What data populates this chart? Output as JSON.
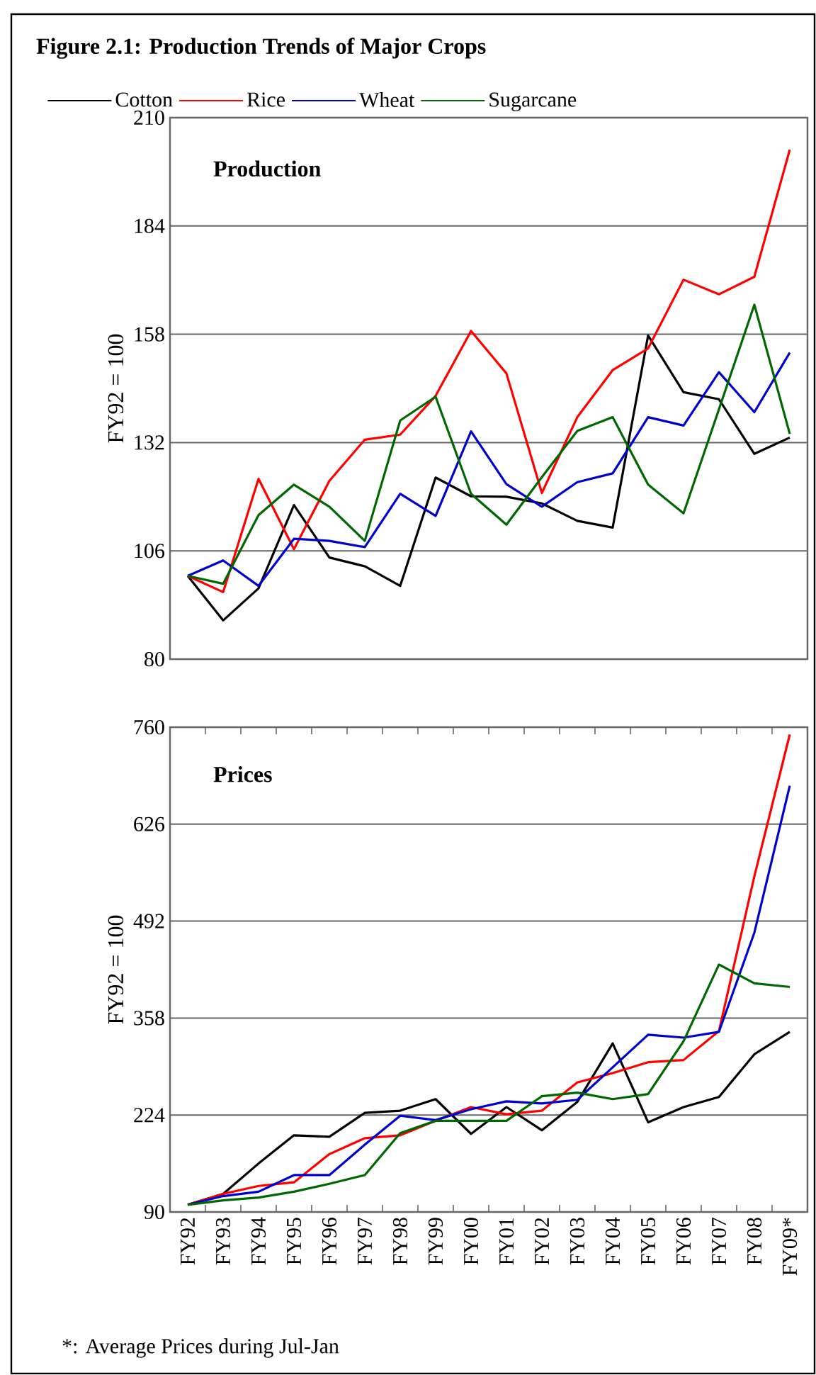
{
  "chart_data": [
    {
      "type": "line",
      "title": "Figure 2.1: Production Trends of Major Crops",
      "subtitle": "Production",
      "ylabel": "FY92 = 100",
      "categories": [
        null,
        null,
        null,
        null,
        null,
        null,
        null,
        null,
        null,
        null,
        null,
        null,
        null,
        null,
        null,
        null,
        null,
        null
      ],
      "series": [
        {
          "name": "Cotton",
          "color": "#000000",
          "values": [
            100,
            89.3,
            97,
            117,
            104.4,
            102.3,
            97.6,
            123.6,
            119.1,
            119,
            117.4,
            113.2,
            111.6,
            157.7,
            144.1,
            142.4,
            129.3,
            133.2
          ]
        },
        {
          "name": "Rice",
          "color": "#ff0000",
          "values": [
            100,
            96.1,
            123.3,
            106.4,
            122.8,
            132.7,
            133.9,
            143.2,
            158.8,
            148.6,
            119.9,
            138.1,
            149.4,
            154.6,
            171.1,
            167.6,
            171.8,
            202.3
          ]
        },
        {
          "name": "Wheat",
          "color": "#0000cc",
          "values": [
            100,
            103.7,
            97.6,
            108.9,
            108.4,
            106.9,
            119.7,
            114.4,
            134.7,
            122,
            116.6,
            122.5,
            124.6,
            138.1,
            136.1,
            148.9,
            139.3,
            153.6
          ]
        },
        {
          "name": "Sugarcane",
          "color": "#006600",
          "values": [
            100,
            98.1,
            114.6,
            121.9,
            116.6,
            108.4,
            137.3,
            143,
            119.7,
            112.3,
            123.7,
            134.8,
            138.1,
            121.9,
            115,
            140,
            165.1,
            134.1
          ]
        }
      ],
      "ylim": [
        80,
        210
      ],
      "yticks": [
        80,
        106,
        132,
        158,
        184,
        210
      ],
      "grid": "y",
      "legend": "top",
      "marker": "none",
      "tick_labels": "y"
    },
    {
      "type": "line",
      "title": "Prices",
      "ylabel": "FY92 = 100",
      "annotations": [
        "*: Average Prices during Jul-Jan"
      ],
      "categories": [
        "FY92",
        "FY93",
        "FY94",
        "FY95",
        "FY96",
        "FY97",
        "FY98",
        "FY99",
        "FY00",
        "FY01",
        "FY02",
        "FY03",
        "FY04",
        "FY05",
        "FY06",
        "FY07",
        "FY08",
        "FY09*"
      ],
      "series": [
        {
          "color": "#000000",
          "values": [
            100,
            115,
            157,
            196,
            194,
            227,
            230,
            246,
            198,
            235,
            203,
            242,
            323,
            214,
            235,
            249,
            308,
            339
          ]
        },
        {
          "color": "#ff0000",
          "values": [
            100,
            115,
            126,
            131,
            170,
            192,
            196,
            216,
            235,
            225,
            230,
            269,
            282,
            297,
            300,
            340,
            554,
            750
          ]
        },
        {
          "color": "#0000cc",
          "values": [
            100,
            112,
            118,
            141,
            141,
            183,
            223,
            217,
            232,
            243,
            240,
            245,
            290,
            335,
            331,
            339,
            476,
            679
          ]
        },
        {
          "color": "#006600",
          "values": [
            100,
            106,
            110,
            118,
            129,
            141,
            199,
            216,
            216,
            216,
            250,
            255,
            246,
            253,
            326,
            432,
            406,
            401
          ]
        }
      ],
      "ylim": [
        90,
        760
      ],
      "yticks": [
        90,
        224,
        358,
        492,
        626,
        760
      ],
      "grid": "y",
      "marker": "none"
    }
  ]
}
